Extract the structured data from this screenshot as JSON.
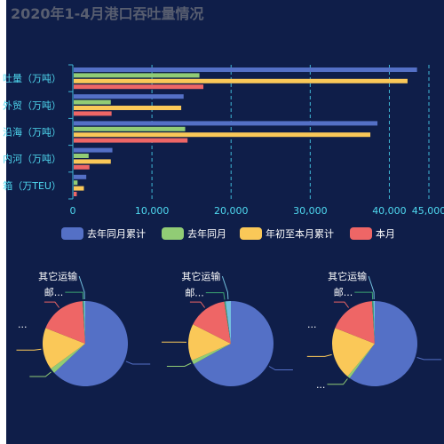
{
  "title": "2020年1-4月港口吞吐量情况",
  "colors": {
    "background": "#0f1e49",
    "axis": "#3fb8d6",
    "label": "#4fd9f0",
    "legend_text": "#ffffff",
    "series": [
      "#5470c6",
      "#91cc75",
      "#fac858",
      "#ee6666"
    ]
  },
  "chart_data": [
    {
      "type": "bar",
      "orientation": "horizontal",
      "categories": [
        "吐量（万吨）",
        "外贸（万吨）",
        "沿海（万吨）",
        "内河（万吨）",
        "箱（万TEU）"
      ],
      "series": [
        {
          "name": "去年同月累计",
          "values": [
            43500,
            14000,
            38500,
            5000,
            1700
          ]
        },
        {
          "name": "去年同月",
          "values": [
            16000,
            4800,
            14200,
            2000,
            600
          ]
        },
        {
          "name": "年初至本月累计",
          "values": [
            42300,
            13700,
            37600,
            4800,
            1400
          ]
        },
        {
          "name": "本月",
          "values": [
            16500,
            4900,
            14500,
            2100,
            500
          ]
        }
      ],
      "xlim": [
        0,
        45000
      ],
      "xticks": [
        "0",
        "10,000",
        "20,000",
        "30,000",
        "40,000",
        "45,000"
      ],
      "xtick_values": [
        0,
        10000,
        20000,
        30000,
        40000,
        45000
      ],
      "grid": "vertical-dashed",
      "legend": "bottom"
    },
    {
      "type": "pie",
      "slices": [
        {
          "label": "",
          "value": 63
        },
        {
          "label": "",
          "value": 2
        },
        {
          "label": "",
          "value": 16
        },
        {
          "label": "",
          "value": 18
        },
        {
          "label": "邮...",
          "value": 0.5
        },
        {
          "label": "其它运输",
          "value": 0.5
        }
      ],
      "extra_labels": [
        "..."
      ]
    },
    {
      "type": "pie",
      "slices": [
        {
          "label": "",
          "value": 67
        },
        {
          "label": "",
          "value": 1.5
        },
        {
          "label": "",
          "value": 14
        },
        {
          "label": "",
          "value": 15
        },
        {
          "label": "邮...",
          "value": 0.5
        },
        {
          "label": "其它运输",
          "value": 2
        }
      ]
    },
    {
      "type": "pie",
      "slices": [
        {
          "label": "",
          "value": 60
        },
        {
          "label": "...",
          "value": 1
        },
        {
          "label": "",
          "value": 20
        },
        {
          "label": "",
          "value": 18
        },
        {
          "label": "邮...",
          "value": 0.5
        },
        {
          "label": "其它运输",
          "value": 0.5
        }
      ],
      "extra_labels": [
        "..."
      ]
    }
  ]
}
